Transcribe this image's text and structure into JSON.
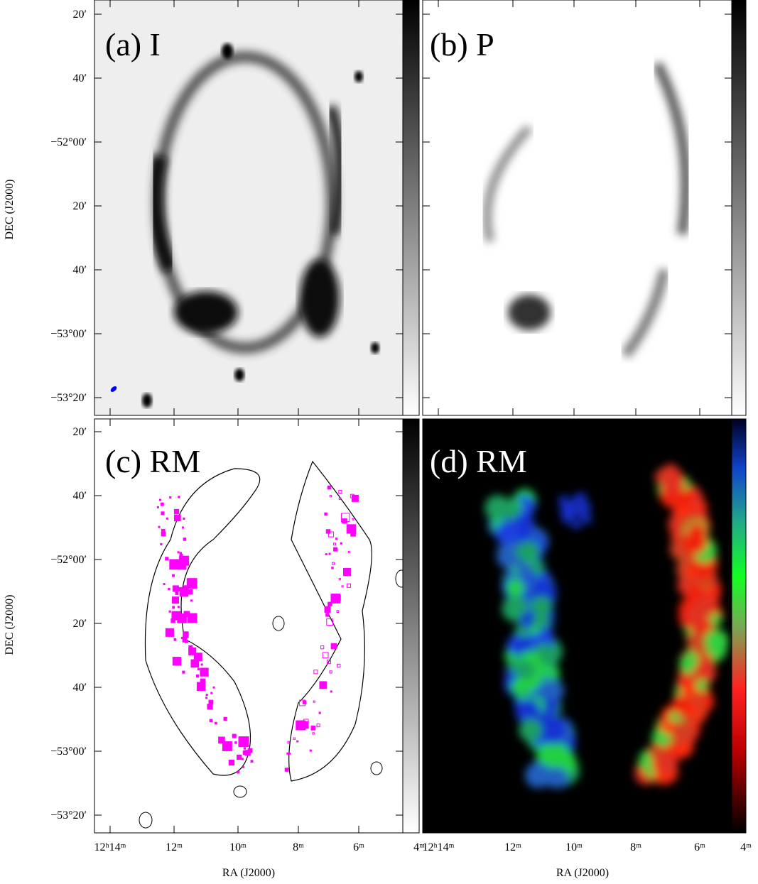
{
  "panels": [
    {
      "label": "(a) I"
    },
    {
      "label": "(b) P"
    },
    {
      "label": "(c) RM"
    },
    {
      "label": "(d) RM"
    }
  ],
  "y_axis": {
    "label": "DEC (J2000)",
    "ticks": [
      "20′",
      "40′",
      "−52°00′",
      "20′",
      "40′",
      "−53°00′",
      "−53°20′"
    ]
  },
  "x_axis": {
    "label": "RA (J2000)",
    "ticks": [
      "12ʰ14ᵐ",
      "12ᵐ",
      "10ᵐ",
      "8ᵐ",
      "6ᵐ",
      "4ᵐ"
    ]
  }
}
